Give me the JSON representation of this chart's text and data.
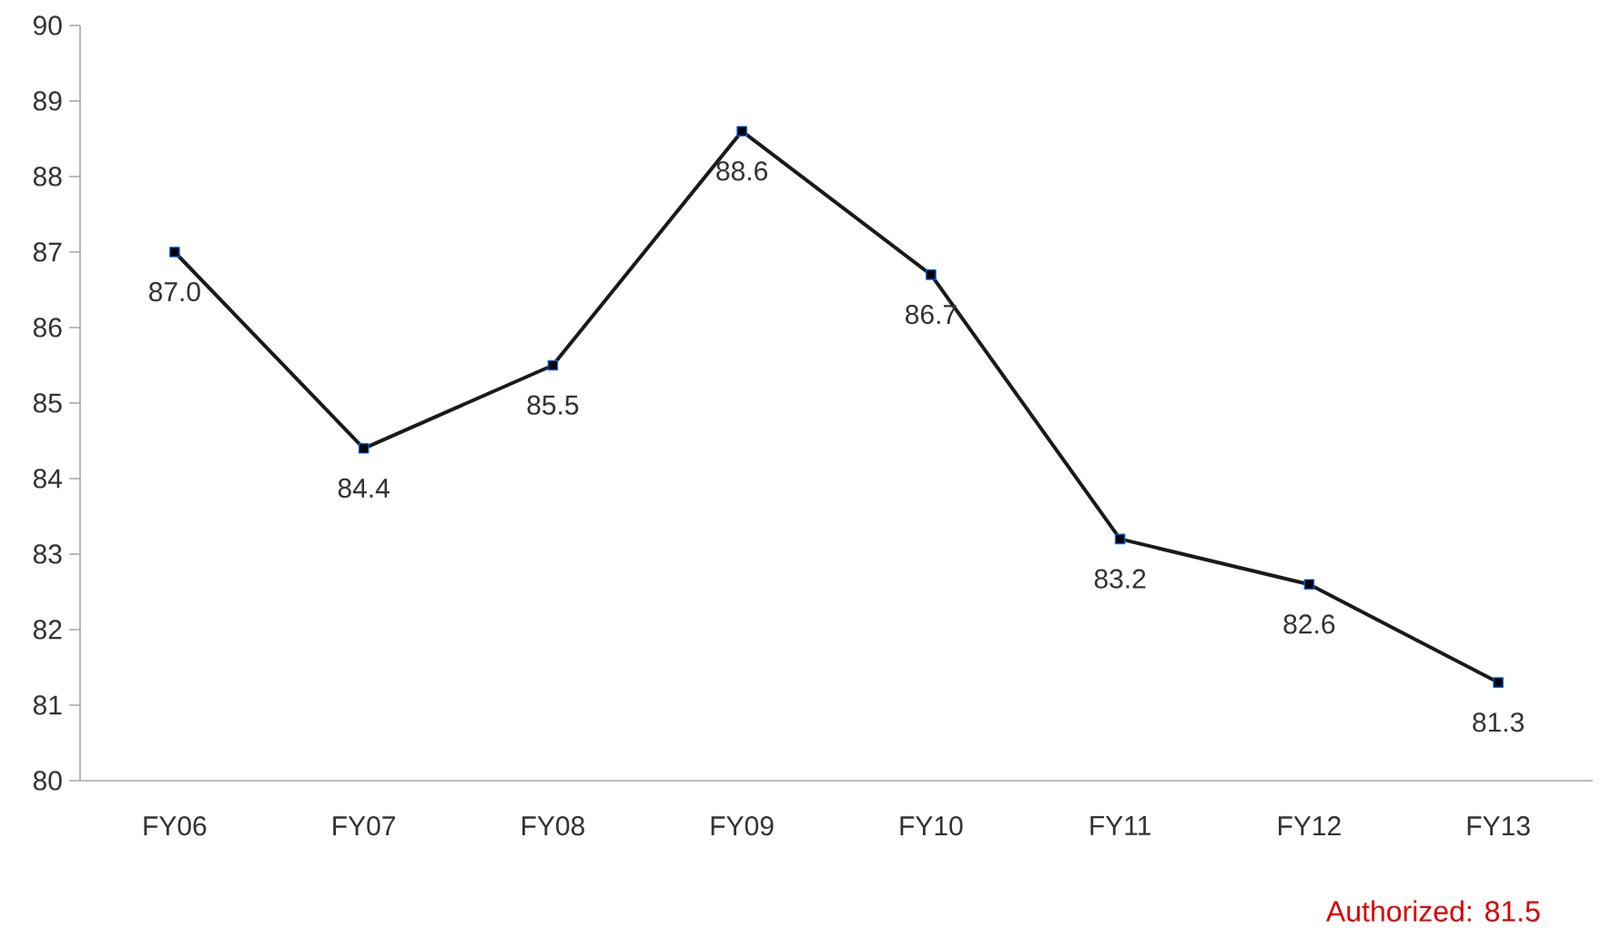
{
  "chart_data": {
    "type": "line",
    "categories": [
      "FY06",
      "FY07",
      "FY08",
      "FY09",
      "FY10",
      "FY11",
      "FY12",
      "FY13"
    ],
    "values": [
      87.0,
      84.4,
      85.5,
      88.6,
      86.7,
      83.2,
      82.6,
      81.3
    ],
    "value_labels": [
      "87.0",
      "84.4",
      "85.5",
      "88.6",
      "86.7",
      "83.2",
      "82.6",
      "81.3"
    ],
    "color": "#1a1a1a",
    "marker": "square",
    "ylim": [
      80,
      90
    ],
    "yticks": [
      80,
      81,
      82,
      83,
      84,
      85,
      86,
      87,
      88,
      89,
      90
    ],
    "annotations": [
      "Authorized: 81.5"
    ]
  }
}
